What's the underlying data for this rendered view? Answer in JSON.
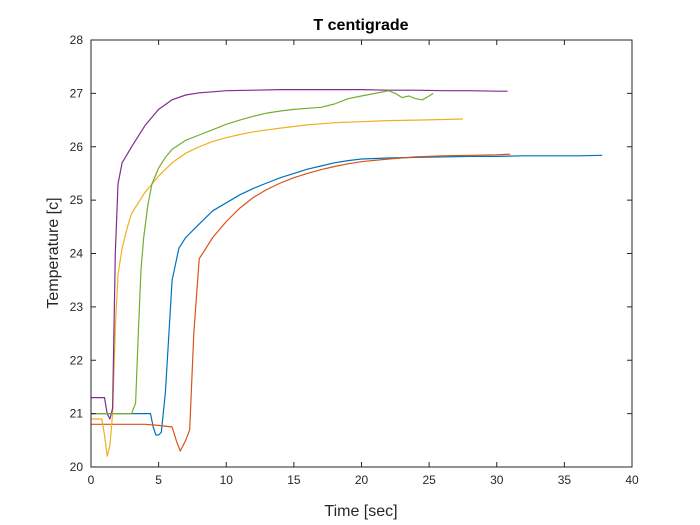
{
  "chart_data": {
    "type": "line",
    "title": "T centigrade",
    "xlabel": "Time [sec]",
    "ylabel": "Temperature [c]",
    "xlim": [
      0,
      40
    ],
    "ylim": [
      20,
      28
    ],
    "xticks": [
      "0",
      "5",
      "10",
      "15",
      "20",
      "25",
      "30",
      "35",
      "40"
    ],
    "yticks": [
      "20",
      "21",
      "22",
      "23",
      "24",
      "25",
      "26",
      "27",
      "28"
    ],
    "grid": false,
    "legend": "none",
    "series": [
      {
        "color": "#0072BD",
        "x": [
          0,
          1,
          2,
          3,
          4,
          4.4,
          4.6,
          4.8,
          5.0,
          5.2,
          5.5,
          6.0,
          6.5,
          7,
          8,
          9,
          10,
          11,
          12,
          13,
          14,
          15,
          16,
          17,
          18,
          19,
          20,
          22,
          24,
          26,
          28,
          30,
          32,
          34,
          36,
          37.8
        ],
        "y": [
          21.0,
          21.0,
          21.0,
          21.0,
          21.0,
          21.0,
          20.75,
          20.6,
          20.6,
          20.65,
          21.4,
          23.5,
          24.1,
          24.3,
          24.55,
          24.8,
          24.95,
          25.1,
          25.22,
          25.32,
          25.42,
          25.5,
          25.58,
          25.64,
          25.7,
          25.74,
          25.77,
          25.79,
          25.8,
          25.81,
          25.82,
          25.82,
          25.83,
          25.83,
          25.83,
          25.84
        ]
      },
      {
        "color": "#D95319",
        "x": [
          0,
          1,
          2,
          3,
          4,
          5,
          6.0,
          6.3,
          6.6,
          7.0,
          7.3,
          7.6,
          8.0,
          8.5,
          9,
          10,
          11,
          12,
          13,
          14,
          15,
          16,
          17,
          18,
          19,
          20,
          22,
          24,
          26,
          28,
          30,
          31
        ],
        "y": [
          20.8,
          20.8,
          20.8,
          20.8,
          20.8,
          20.78,
          20.75,
          20.5,
          20.3,
          20.5,
          20.7,
          22.5,
          23.9,
          24.1,
          24.3,
          24.6,
          24.85,
          25.05,
          25.2,
          25.32,
          25.42,
          25.5,
          25.57,
          25.63,
          25.68,
          25.72,
          25.77,
          25.81,
          25.83,
          25.84,
          25.85,
          25.86
        ]
      },
      {
        "color": "#EDB120",
        "x": [
          0,
          0.8,
          1.0,
          1.2,
          1.4,
          1.6,
          1.8,
          2.0,
          2.3,
          2.7,
          3,
          4,
          5,
          6,
          7,
          8,
          9,
          10,
          11,
          12,
          14,
          16,
          18,
          20,
          22,
          24,
          26,
          27.5
        ],
        "y": [
          20.9,
          20.9,
          20.6,
          20.2,
          20.4,
          21.0,
          22.6,
          23.6,
          24.1,
          24.5,
          24.75,
          25.15,
          25.45,
          25.7,
          25.88,
          26.0,
          26.1,
          26.17,
          26.23,
          26.28,
          26.35,
          26.41,
          26.45,
          26.47,
          26.49,
          26.5,
          26.51,
          26.52
        ]
      },
      {
        "color": "#7E2F8E",
        "x": [
          0,
          0.5,
          1.0,
          1.2,
          1.4,
          1.6,
          1.8,
          2.0,
          2.3,
          3,
          4,
          5,
          6,
          7,
          8,
          9,
          10,
          12,
          14,
          16,
          18,
          20,
          22,
          24,
          26,
          28,
          30,
          30.8
        ],
        "y": [
          21.3,
          21.3,
          21.3,
          21.0,
          20.9,
          21.1,
          24.0,
          25.3,
          25.7,
          26.0,
          26.4,
          26.7,
          26.88,
          26.97,
          27.01,
          27.03,
          27.05,
          27.06,
          27.07,
          27.07,
          27.07,
          27.07,
          27.06,
          27.06,
          27.05,
          27.05,
          27.04,
          27.04
        ]
      },
      {
        "color": "#77AC30",
        "x": [
          0,
          1,
          2,
          3,
          3.3,
          3.5,
          3.7,
          3.9,
          4.2,
          4.5,
          5,
          5.5,
          6,
          7,
          8,
          9,
          10,
          11,
          12,
          13,
          14,
          15,
          16,
          17,
          18,
          19,
          20,
          21,
          22,
          22.5,
          23,
          23.5,
          24,
          24.5,
          25.0,
          25.3
        ],
        "y": [
          21.0,
          21.0,
          21.0,
          21.0,
          21.2,
          22.5,
          23.7,
          24.3,
          24.9,
          25.3,
          25.6,
          25.8,
          25.95,
          26.12,
          26.22,
          26.32,
          26.42,
          26.5,
          26.57,
          26.63,
          26.67,
          26.7,
          26.72,
          26.74,
          26.8,
          26.9,
          26.95,
          27.0,
          27.05,
          27.0,
          26.92,
          26.95,
          26.9,
          26.88,
          26.95,
          27.0
        ]
      }
    ]
  }
}
